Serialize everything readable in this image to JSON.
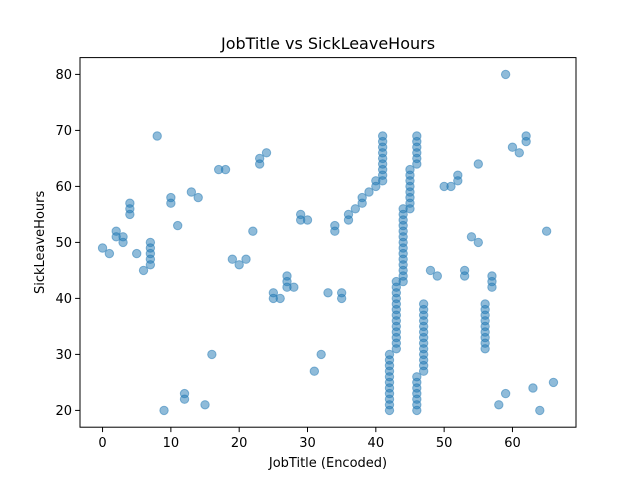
{
  "chart_data": {
    "type": "scatter",
    "title": "JobTitle vs SickLeaveHours",
    "xlabel": "JobTitle (Encoded)",
    "ylabel": "SickLeaveHours",
    "xlim": [
      -3.3,
      69.3
    ],
    "ylim": [
      17.0,
      83.0
    ],
    "xticks": [
      0,
      10,
      20,
      30,
      40,
      50,
      60
    ],
    "yticks": [
      20,
      30,
      40,
      50,
      60,
      70,
      80
    ],
    "grid": false,
    "marker_color": "#1f77b4",
    "marker_alpha": 0.5,
    "points": [
      [
        0,
        49
      ],
      [
        1,
        48
      ],
      [
        2,
        52
      ],
      [
        2,
        51
      ],
      [
        3,
        51
      ],
      [
        3,
        50
      ],
      [
        4,
        57
      ],
      [
        4,
        56
      ],
      [
        4,
        55
      ],
      [
        5,
        48
      ],
      [
        6,
        45
      ],
      [
        7,
        50
      ],
      [
        7,
        49
      ],
      [
        7,
        48
      ],
      [
        7,
        47
      ],
      [
        7,
        46
      ],
      [
        8,
        69
      ],
      [
        9,
        20
      ],
      [
        10,
        58
      ],
      [
        10,
        57
      ],
      [
        11,
        53
      ],
      [
        12,
        23
      ],
      [
        12,
        22
      ],
      [
        13,
        59
      ],
      [
        14,
        58
      ],
      [
        15,
        21
      ],
      [
        16,
        30
      ],
      [
        17,
        63
      ],
      [
        18,
        63
      ],
      [
        19,
        47
      ],
      [
        20,
        46
      ],
      [
        21,
        47
      ],
      [
        22,
        52
      ],
      [
        23,
        65
      ],
      [
        23,
        64
      ],
      [
        24,
        66
      ],
      [
        25,
        41
      ],
      [
        25,
        40
      ],
      [
        26,
        40
      ],
      [
        27,
        44
      ],
      [
        27,
        43
      ],
      [
        27,
        42
      ],
      [
        28,
        42
      ],
      [
        29,
        55
      ],
      [
        29,
        54
      ],
      [
        30,
        54
      ],
      [
        31,
        27
      ],
      [
        32,
        30
      ],
      [
        33,
        41
      ],
      [
        34,
        53
      ],
      [
        34,
        52
      ],
      [
        35,
        41
      ],
      [
        35,
        40
      ],
      [
        36,
        55
      ],
      [
        36,
        54
      ],
      [
        37,
        56
      ],
      [
        38,
        58
      ],
      [
        38,
        57
      ],
      [
        39,
        59
      ],
      [
        40,
        61
      ],
      [
        40,
        60
      ],
      [
        41,
        69
      ],
      [
        41,
        68
      ],
      [
        41,
        67
      ],
      [
        41,
        66
      ],
      [
        41,
        65
      ],
      [
        41,
        64
      ],
      [
        41,
        63
      ],
      [
        41,
        62
      ],
      [
        41,
        61
      ],
      [
        42,
        30
      ],
      [
        42,
        29
      ],
      [
        42,
        28
      ],
      [
        42,
        27
      ],
      [
        42,
        26
      ],
      [
        42,
        25
      ],
      [
        42,
        24
      ],
      [
        42,
        23
      ],
      [
        42,
        22
      ],
      [
        42,
        21
      ],
      [
        42,
        20
      ],
      [
        43,
        43
      ],
      [
        43,
        42
      ],
      [
        43,
        41
      ],
      [
        43,
        40
      ],
      [
        43,
        39
      ],
      [
        43,
        38
      ],
      [
        43,
        37
      ],
      [
        43,
        36
      ],
      [
        43,
        35
      ],
      [
        43,
        34
      ],
      [
        43,
        33
      ],
      [
        43,
        32
      ],
      [
        43,
        31
      ],
      [
        44,
        56
      ],
      [
        44,
        55
      ],
      [
        44,
        54
      ],
      [
        44,
        53
      ],
      [
        44,
        52
      ],
      [
        44,
        51
      ],
      [
        44,
        50
      ],
      [
        44,
        49
      ],
      [
        44,
        48
      ],
      [
        44,
        47
      ],
      [
        44,
        46
      ],
      [
        44,
        45
      ],
      [
        44,
        44
      ],
      [
        44,
        43
      ],
      [
        45,
        63
      ],
      [
        45,
        62
      ],
      [
        45,
        61
      ],
      [
        45,
        60
      ],
      [
        45,
        59
      ],
      [
        45,
        58
      ],
      [
        45,
        57
      ],
      [
        45,
        56
      ],
      [
        46,
        69
      ],
      [
        46,
        68
      ],
      [
        46,
        67
      ],
      [
        46,
        66
      ],
      [
        46,
        65
      ],
      [
        46,
        64
      ],
      [
        46,
        26
      ],
      [
        46,
        25
      ],
      [
        46,
        24
      ],
      [
        46,
        23
      ],
      [
        46,
        22
      ],
      [
        46,
        21
      ],
      [
        46,
        20
      ],
      [
        47,
        39
      ],
      [
        47,
        38
      ],
      [
        47,
        37
      ],
      [
        47,
        36
      ],
      [
        47,
        35
      ],
      [
        47,
        34
      ],
      [
        47,
        33
      ],
      [
        47,
        32
      ],
      [
        47,
        31
      ],
      [
        47,
        30
      ],
      [
        47,
        29
      ],
      [
        47,
        28
      ],
      [
        47,
        27
      ],
      [
        48,
        45
      ],
      [
        49,
        44
      ],
      [
        50,
        60
      ],
      [
        51,
        60
      ],
      [
        52,
        62
      ],
      [
        52,
        61
      ],
      [
        53,
        45
      ],
      [
        53,
        44
      ],
      [
        54,
        51
      ],
      [
        55,
        64
      ],
      [
        55,
        50
      ],
      [
        56,
        39
      ],
      [
        56,
        38
      ],
      [
        56,
        37
      ],
      [
        56,
        36
      ],
      [
        56,
        35
      ],
      [
        56,
        34
      ],
      [
        56,
        33
      ],
      [
        56,
        32
      ],
      [
        56,
        31
      ],
      [
        57,
        44
      ],
      [
        57,
        43
      ],
      [
        57,
        42
      ],
      [
        58,
        21
      ],
      [
        59,
        80
      ],
      [
        59,
        23
      ],
      [
        60,
        67
      ],
      [
        61,
        66
      ],
      [
        62,
        69
      ],
      [
        62,
        68
      ],
      [
        63,
        24
      ],
      [
        64,
        20
      ],
      [
        65,
        52
      ],
      [
        66,
        25
      ]
    ]
  }
}
